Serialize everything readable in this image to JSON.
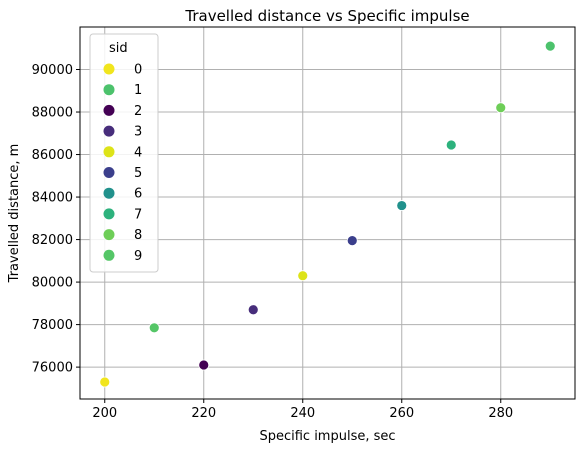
{
  "chart_data": {
    "type": "scatter",
    "title": "Travelled distance vs Specific impulse",
    "xlabel": "Specific impulse, sec",
    "ylabel": "Travelled distance, m",
    "xlim": [
      195,
      295
    ],
    "ylim": [
      74500,
      92000
    ],
    "xticks": [
      200,
      220,
      240,
      260,
      280
    ],
    "yticks": [
      76000,
      78000,
      80000,
      82000,
      84000,
      86000,
      88000,
      90000
    ],
    "grid": true,
    "legend": {
      "title": "sid",
      "placement": "top-left"
    },
    "categories": [
      "0",
      "1",
      "2",
      "3",
      "4",
      "5",
      "6",
      "7",
      "8",
      "9"
    ],
    "colors": [
      "#f1e51d",
      "#4cc26c",
      "#440154",
      "#472d7b",
      "#dde318",
      "#3b3f8c",
      "#21918c",
      "#2db27d",
      "#6ece58",
      "#55c667"
    ],
    "points": [
      {
        "sid": "0",
        "x": 200,
        "y": 75300
      },
      {
        "sid": "9",
        "x": 210,
        "y": 77850
      },
      {
        "sid": "2",
        "x": 220,
        "y": 76100
      },
      {
        "sid": "3",
        "x": 230,
        "y": 78700
      },
      {
        "sid": "4",
        "x": 240,
        "y": 80300
      },
      {
        "sid": "5",
        "x": 250,
        "y": 81950
      },
      {
        "sid": "6",
        "x": 260,
        "y": 83600
      },
      {
        "sid": "7",
        "x": 270,
        "y": 86450
      },
      {
        "sid": "8",
        "x": 280,
        "y": 88200
      },
      {
        "sid": "1",
        "x": 290,
        "y": 91100
      }
    ]
  }
}
